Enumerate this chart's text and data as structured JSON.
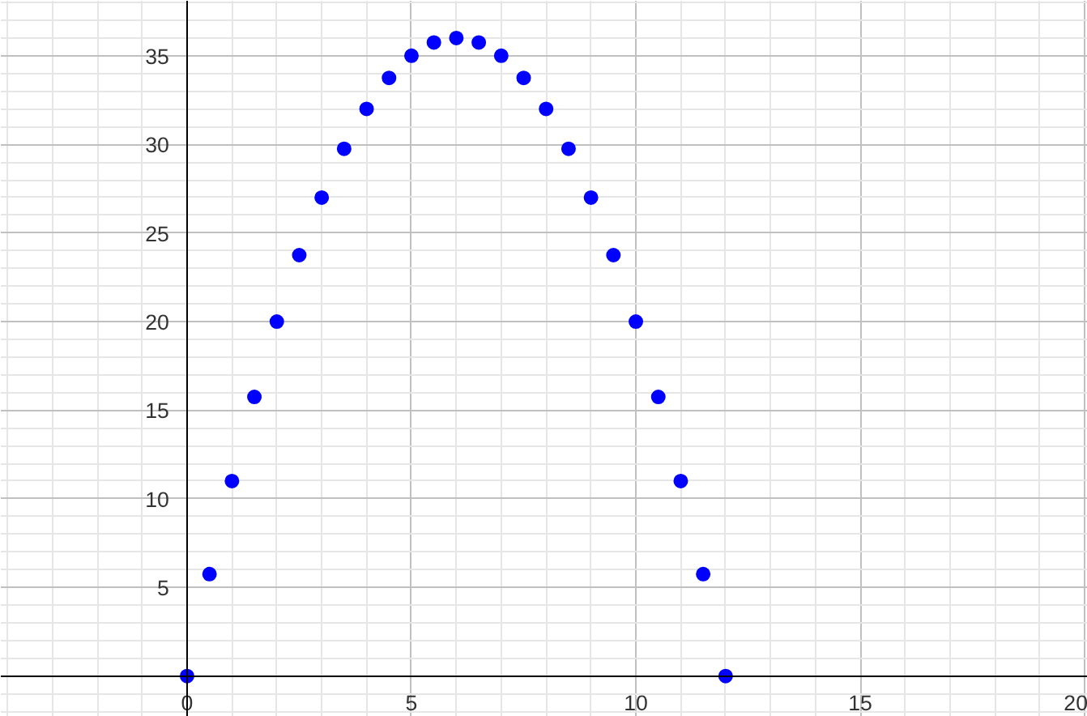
{
  "chart_data": {
    "type": "scatter",
    "x": [
      0,
      0.5,
      1,
      1.5,
      2,
      2.5,
      3,
      3.5,
      4,
      4.5,
      5,
      5.5,
      6,
      6.5,
      7,
      7.5,
      8,
      8.5,
      9,
      9.5,
      10,
      10.5,
      11,
      11.5,
      12
    ],
    "series": [
      {
        "color": "#0000ff",
        "values": [
          0,
          5.75,
          11,
          15.75,
          20,
          23.75,
          27,
          29.75,
          32,
          33.75,
          35,
          35.75,
          36,
          35.75,
          35,
          33.75,
          32,
          29.75,
          27,
          23.75,
          20,
          15.75,
          11,
          5.75,
          0
        ]
      }
    ],
    "xlim": [
      -4.15,
      20.07
    ],
    "ylim": [
      -2.3,
      38.1
    ],
    "xticks": [
      0,
      5,
      10,
      15,
      20
    ],
    "yticks": [
      5,
      10,
      15,
      20,
      25,
      30,
      35
    ],
    "grid": true,
    "marker": "circle"
  }
}
